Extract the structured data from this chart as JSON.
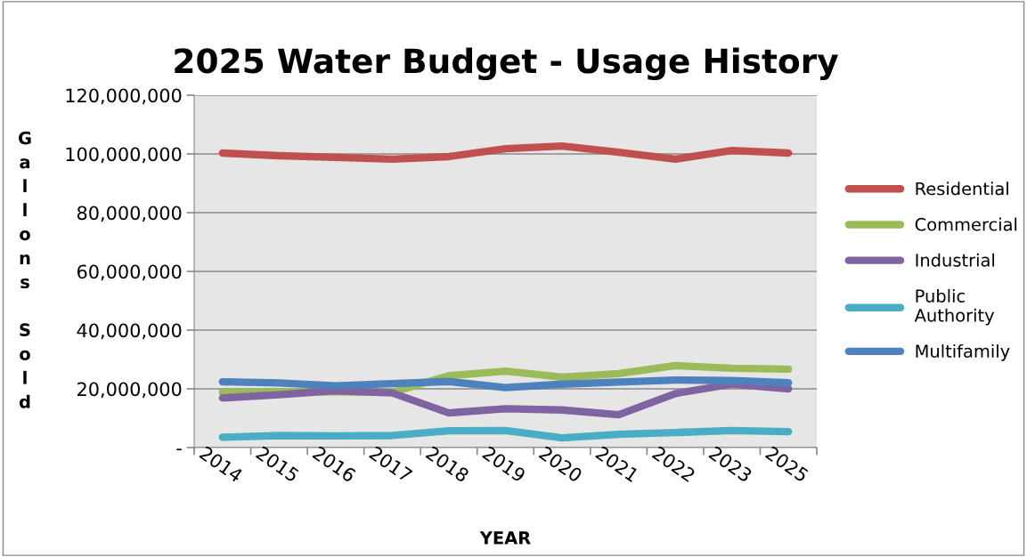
{
  "chart_data": {
    "type": "line",
    "title": "2025 Water Budget - Usage History",
    "xlabel": "YEAR",
    "ylabel": "Gallons Sold",
    "categories": [
      "2014",
      "2015",
      "2016",
      "2017",
      "2018",
      "2019",
      "2020",
      "2021",
      "2022",
      "2023",
      "2025"
    ],
    "series": [
      {
        "name": "Residential",
        "color": "#c0504d",
        "values": [
          100300000,
          99400000,
          98800000,
          98200000,
          99100000,
          101800000,
          102700000,
          100600000,
          98200000,
          101200000,
          100300000
        ]
      },
      {
        "name": "Commercial",
        "color": "#9bbb59",
        "values": [
          18800000,
          19000000,
          19000000,
          18800000,
          24500000,
          26000000,
          24000000,
          25200000,
          27900000,
          27000000,
          26700000
        ]
      },
      {
        "name": "Industrial",
        "color": "#8064a2",
        "values": [
          16900000,
          18000000,
          19400000,
          18600000,
          11800000,
          13200000,
          12800000,
          11200000,
          18400000,
          21600000,
          20000000
        ]
      },
      {
        "name": "Public Authority",
        "color": "#4bacc6",
        "values": [
          3500000,
          4100000,
          4000000,
          4100000,
          5700000,
          5800000,
          3300000,
          4500000,
          5100000,
          5800000,
          5400000
        ]
      },
      {
        "name": "Multifamily",
        "color": "#4f81bd",
        "values": [
          22400000,
          22000000,
          21000000,
          21800000,
          22500000,
          20400000,
          21600000,
          22300000,
          23000000,
          22800000,
          22100000
        ]
      }
    ],
    "ylim": [
      0,
      120000000
    ],
    "yticks": [
      {
        "value": 0,
        "label": "-"
      },
      {
        "value": 20000000,
        "label": "20,000,000"
      },
      {
        "value": 40000000,
        "label": "40,000,000"
      },
      {
        "value": 60000000,
        "label": "60,000,000"
      },
      {
        "value": 80000000,
        "label": "80,000,000"
      },
      {
        "value": 100000000,
        "label": "100,000,000"
      },
      {
        "value": 120000000,
        "label": "120,000,000"
      }
    ],
    "grid": "y",
    "legend": "right",
    "marker": "none",
    "line_style": "solid"
  }
}
